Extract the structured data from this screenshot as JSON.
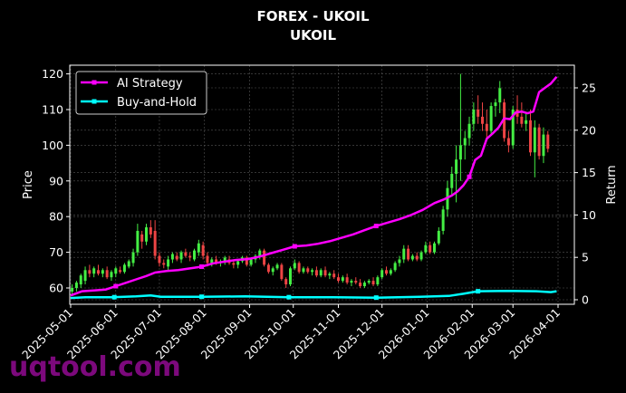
{
  "title": {
    "line1": "FOREX - UKOIL",
    "line2": "UKOIL"
  },
  "watermark": "uqtool.com",
  "colors": {
    "background": "#000000",
    "ai_strategy": "#ff00ff",
    "buy_and_hold": "#00ffff",
    "candle_up": "#44ee44",
    "candle_down": "#ee4444",
    "grid": "#555555",
    "axis": "#ffffff",
    "watermark": "#8a0a8a"
  },
  "chart_data": {
    "type": "line",
    "subtype": "candlestick with dual-axis return lines",
    "title": "FOREX - UKOIL\nUKOIL",
    "xlabel": "",
    "ylabel": "Price",
    "y2label": "Return",
    "ylim": [
      56,
      122
    ],
    "y2lim": [
      -0.5,
      27.3
    ],
    "yticks": [
      60,
      70,
      80,
      90,
      100,
      110,
      120
    ],
    "y2ticks": [
      0,
      5,
      10,
      15,
      20,
      25
    ],
    "xticks": [
      "2025-05-01",
      "2025-06-01",
      "2025-07-01",
      "2025-08-01",
      "2025-09-01",
      "2025-10-01",
      "2025-11-01",
      "2025-12-01",
      "2026-01-01",
      "2026-02-01",
      "2026-03-01",
      "2026-04-01"
    ],
    "xrange_days": [
      0,
      346
    ],
    "grid": true,
    "legend": {
      "position": "upper left",
      "entries": [
        "AI Strategy",
        "Buy-and-Hold"
      ]
    },
    "candles_note": "day offset from 2025-05-01, [day, open, high, low, close]",
    "candles": [
      [
        1,
        59,
        61,
        58,
        60
      ],
      [
        4,
        60,
        62,
        59,
        61.5
      ],
      [
        7,
        61,
        64,
        60,
        63.5
      ],
      [
        10,
        62,
        66,
        61,
        65
      ],
      [
        13,
        65,
        66.5,
        63,
        64
      ],
      [
        16,
        64,
        66,
        63,
        65.5
      ],
      [
        19,
        65,
        66.5,
        63.5,
        64
      ],
      [
        22,
        64,
        65.5,
        63,
        65
      ],
      [
        25,
        65,
        66,
        62.5,
        63
      ],
      [
        28,
        63,
        65,
        62,
        64.5
      ],
      [
        31,
        64,
        66,
        63,
        65.5
      ],
      [
        34,
        65,
        66,
        64,
        64.5
      ],
      [
        37,
        64.5,
        67,
        64,
        66.5
      ],
      [
        40,
        66,
        68,
        65.5,
        67.5
      ],
      [
        43,
        67,
        71,
        66,
        70
      ],
      [
        46,
        70,
        78,
        69,
        76
      ],
      [
        49,
        75,
        76,
        71,
        73
      ],
      [
        52,
        73,
        78,
        72,
        77
      ],
      [
        55,
        77,
        79,
        74,
        75
      ],
      [
        58,
        76,
        79,
        68,
        69
      ],
      [
        61,
        69,
        70,
        66,
        67
      ],
      [
        64,
        67,
        68,
        65.5,
        66.5
      ],
      [
        67,
        66,
        69,
        65,
        68
      ],
      [
        70,
        68,
        70,
        67,
        69.5
      ],
      [
        73,
        69,
        70,
        67.5,
        68
      ],
      [
        76,
        68,
        70.5,
        67,
        70
      ],
      [
        79,
        70,
        71,
        68.5,
        69
      ],
      [
        82,
        69,
        70,
        67.5,
        68.5
      ],
      [
        85,
        68,
        71,
        67.5,
        70.5
      ],
      [
        88,
        70,
        73.5,
        69,
        72.5
      ],
      [
        91,
        72,
        73,
        68,
        69
      ],
      [
        94,
        69,
        70,
        66,
        67
      ],
      [
        97,
        67,
        68.5,
        66,
        68
      ],
      [
        100,
        68,
        69,
        66.5,
        67
      ],
      [
        103,
        67,
        68,
        66,
        67.5
      ],
      [
        106,
        67.5,
        69,
        66.5,
        68.5
      ],
      [
        109,
        68,
        69,
        66.5,
        67
      ],
      [
        112,
        67,
        68,
        65.5,
        66.5
      ],
      [
        115,
        66.5,
        68,
        65.5,
        67.5
      ],
      [
        118,
        67.5,
        69,
        67,
        68.5
      ],
      [
        121,
        68.5,
        69,
        66,
        66.5
      ],
      [
        124,
        66.5,
        68.5,
        66,
        68
      ],
      [
        127,
        68,
        69.5,
        67,
        69
      ],
      [
        130,
        69,
        71,
        68,
        70.5
      ],
      [
        133,
        70.5,
        71,
        66,
        66.5
      ],
      [
        136,
        66.5,
        67,
        64,
        64.5
      ],
      [
        139,
        64.5,
        66,
        63.5,
        65.5
      ],
      [
        142,
        65.5,
        67,
        65,
        66.5
      ],
      [
        145,
        66.5,
        67,
        62,
        62.5
      ],
      [
        148,
        62.5,
        63,
        60,
        61
      ],
      [
        151,
        61,
        66,
        60.5,
        65.5
      ],
      [
        154,
        65.5,
        68,
        65,
        67
      ],
      [
        157,
        67,
        67.5,
        64,
        64.5
      ],
      [
        160,
        64.5,
        66,
        64,
        65.5
      ],
      [
        163,
        65.5,
        66,
        64,
        64.5
      ],
      [
        166,
        64.5,
        65.5,
        63.5,
        65
      ],
      [
        169,
        65,
        66,
        63,
        63.5
      ],
      [
        172,
        63.5,
        65.5,
        63,
        65
      ],
      [
        175,
        65,
        66,
        63,
        63.5
      ],
      [
        178,
        63.5,
        64.5,
        62.5,
        64
      ],
      [
        181,
        64,
        65,
        62.5,
        63
      ],
      [
        184,
        63,
        64,
        61.5,
        62
      ],
      [
        187,
        62,
        63.5,
        61.5,
        63
      ],
      [
        190,
        63,
        64,
        61,
        61.5
      ],
      [
        193,
        61.5,
        62.5,
        60.5,
        62
      ],
      [
        196,
        62,
        63,
        61,
        61.5
      ],
      [
        199,
        61.5,
        62.5,
        60,
        60.5
      ],
      [
        202,
        60.5,
        62,
        60,
        61.5
      ],
      [
        205,
        61.5,
        62.5,
        61,
        62
      ],
      [
        208,
        62,
        63,
        60.5,
        61
      ],
      [
        211,
        61,
        63.5,
        60.5,
        63
      ],
      [
        214,
        63,
        65.5,
        62.5,
        65
      ],
      [
        217,
        65,
        66,
        63.5,
        64
      ],
      [
        220,
        64,
        65.5,
        63.5,
        65
      ],
      [
        223,
        65,
        67.5,
        64.5,
        67
      ],
      [
        226,
        67,
        69,
        66,
        68
      ],
      [
        229,
        68,
        72,
        67,
        71
      ],
      [
        232,
        71,
        72,
        67.5,
        68
      ],
      [
        235,
        68,
        69.5,
        67.5,
        69
      ],
      [
        238,
        69,
        70,
        67.5,
        68
      ],
      [
        241,
        68,
        70.5,
        67.5,
        70
      ],
      [
        244,
        70,
        73,
        69.5,
        72
      ],
      [
        247,
        72,
        73,
        69.5,
        70
      ],
      [
        250,
        70,
        73,
        69.5,
        72.5
      ],
      [
        253,
        72.5,
        77,
        72,
        76
      ],
      [
        256,
        76,
        83,
        75,
        82
      ],
      [
        259,
        82,
        90,
        80,
        88
      ],
      [
        262,
        88,
        94,
        86,
        92
      ],
      [
        265,
        92,
        100,
        84,
        96
      ],
      [
        268,
        96,
        120,
        90,
        100
      ],
      [
        271,
        100,
        104,
        96,
        102
      ],
      [
        274,
        102,
        108,
        100,
        106
      ],
      [
        277,
        106,
        112,
        104,
        110
      ],
      [
        280,
        110,
        114,
        106,
        108
      ],
      [
        283,
        108,
        112,
        104,
        106
      ],
      [
        286,
        106,
        110,
        102,
        104
      ],
      [
        289,
        104,
        112,
        103,
        111
      ],
      [
        292,
        111,
        113,
        108,
        112
      ],
      [
        295,
        112,
        118,
        109,
        116
      ],
      [
        298,
        112,
        113,
        101,
        102
      ],
      [
        301,
        102,
        104,
        98,
        100
      ],
      [
        304,
        100,
        111,
        99,
        110
      ],
      [
        307,
        110,
        114,
        106,
        108
      ],
      [
        310,
        108,
        112,
        105,
        106
      ],
      [
        313,
        106,
        109,
        104,
        107
      ],
      [
        316,
        107,
        110,
        97,
        98
      ],
      [
        319,
        98,
        107,
        91,
        105
      ],
      [
        322,
        105,
        106,
        96,
        97
      ],
      [
        325,
        97,
        105,
        95,
        103
      ],
      [
        328,
        103,
        104,
        98,
        99
      ]
    ],
    "series": [
      {
        "name": "AI Strategy",
        "axis": "right",
        "color": "#ff00ff",
        "points": [
          [
            0,
            0.5
          ],
          [
            8,
            1.0
          ],
          [
            16,
            1.1
          ],
          [
            24,
            1.2
          ],
          [
            31,
            1.6
          ],
          [
            38,
            2.0
          ],
          [
            45,
            2.4
          ],
          [
            52,
            2.8
          ],
          [
            58,
            3.2
          ],
          [
            66,
            3.4
          ],
          [
            74,
            3.5
          ],
          [
            82,
            3.7
          ],
          [
            90,
            3.9
          ],
          [
            98,
            4.3
          ],
          [
            106,
            4.5
          ],
          [
            114,
            4.7
          ],
          [
            122,
            4.8
          ],
          [
            130,
            5.1
          ],
          [
            138,
            5.5
          ],
          [
            146,
            5.9
          ],
          [
            154,
            6.3
          ],
          [
            162,
            6.4
          ],
          [
            170,
            6.6
          ],
          [
            178,
            6.9
          ],
          [
            186,
            7.3
          ],
          [
            194,
            7.7
          ],
          [
            202,
            8.2
          ],
          [
            210,
            8.7
          ],
          [
            218,
            9.1
          ],
          [
            226,
            9.5
          ],
          [
            234,
            10.0
          ],
          [
            242,
            10.6
          ],
          [
            250,
            11.4
          ],
          [
            256,
            11.8
          ],
          [
            262,
            12.3
          ],
          [
            266,
            12.8
          ],
          [
            270,
            13.5
          ],
          [
            274,
            14.5
          ],
          [
            278,
            16.5
          ],
          [
            282,
            17.0
          ],
          [
            286,
            19.0
          ],
          [
            290,
            19.6
          ],
          [
            294,
            20.3
          ],
          [
            298,
            21.4
          ],
          [
            302,
            21.3
          ],
          [
            306,
            22.1
          ],
          [
            310,
            22.2
          ],
          [
            314,
            22.0
          ],
          [
            318,
            22.2
          ],
          [
            322,
            24.5
          ],
          [
            326,
            25.0
          ],
          [
            330,
            25.5
          ],
          [
            334,
            26.3
          ]
        ]
      },
      {
        "name": "Buy-and-Hold",
        "axis": "right",
        "color": "#00ffff",
        "points": [
          [
            0,
            0.2
          ],
          [
            10,
            0.3
          ],
          [
            30,
            0.3
          ],
          [
            45,
            0.4
          ],
          [
            55,
            0.5
          ],
          [
            62,
            0.35
          ],
          [
            90,
            0.35
          ],
          [
            120,
            0.4
          ],
          [
            150,
            0.3
          ],
          [
            180,
            0.3
          ],
          [
            210,
            0.25
          ],
          [
            240,
            0.35
          ],
          [
            260,
            0.45
          ],
          [
            270,
            0.7
          ],
          [
            280,
            1.0
          ],
          [
            300,
            1.05
          ],
          [
            320,
            1.0
          ],
          [
            330,
            0.9
          ],
          [
            334,
            1.0
          ]
        ]
      }
    ]
  }
}
